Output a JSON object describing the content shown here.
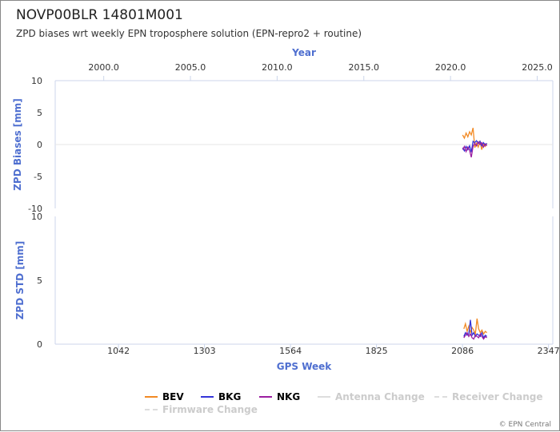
{
  "header": {
    "title": "NOVP00BLR 14801M001",
    "subtitle": "ZPD biases wrt weekly EPN troposphere solution (EPN-repro2 + routine)"
  },
  "credit": "© EPN Central",
  "colors": {
    "axis_title": "#4f6fd0",
    "BEV": "#f28a24",
    "BKG": "#3434d8",
    "NKG": "#9b1ea0",
    "inactive": "#cccccc"
  },
  "chart_data": [
    {
      "type": "line",
      "name": "bias-panel",
      "ylabel": "ZPD Biases [mm]",
      "ylim": [
        -10,
        10
      ],
      "yticks": [
        "10",
        "5",
        "0",
        "-5",
        "-10"
      ],
      "top_axis": {
        "label": "Year",
        "range": [
          1997.2,
          2025.9
        ],
        "ticks": [
          "2000.0",
          "2005.0",
          "2010.0",
          "2015.0",
          "2020.0",
          "2025.0"
        ]
      },
      "series": [
        {
          "name": "BEV",
          "x": [
            2020.7,
            2020.8,
            2020.9,
            2021.0,
            2021.1,
            2021.2,
            2021.3,
            2021.4,
            2021.5,
            2021.6,
            2021.7,
            2021.8,
            2021.9,
            2022.0,
            2022.1
          ],
          "y": [
            1.5,
            1.0,
            1.8,
            1.2,
            2.0,
            1.5,
            2.6,
            -0.5,
            0.2,
            -0.4,
            0.6,
            -0.8,
            0.1,
            -0.3,
            0.2
          ]
        },
        {
          "name": "BKG",
          "x": [
            2020.7,
            2020.8,
            2020.9,
            2021.0,
            2021.1,
            2021.2,
            2021.3,
            2021.4,
            2021.5,
            2021.6,
            2021.7,
            2021.8,
            2021.9,
            2022.0,
            2022.1
          ],
          "y": [
            -0.5,
            -1.0,
            -0.3,
            -0.8,
            -0.2,
            -1.2,
            0.5,
            0.3,
            0.6,
            0.2,
            0.5,
            -0.2,
            0.3,
            -0.1,
            0.2
          ]
        },
        {
          "name": "NKG",
          "x": [
            2020.7,
            2020.8,
            2020.9,
            2021.0,
            2021.1,
            2021.2,
            2021.3,
            2021.4,
            2021.5,
            2021.6,
            2021.7,
            2021.8,
            2021.9,
            2022.0,
            2022.1
          ],
          "y": [
            -0.8,
            -0.3,
            -1.1,
            -0.4,
            -0.9,
            -2.0,
            -0.3,
            0.2,
            -0.2,
            0.4,
            0.0,
            0.3,
            -0.4,
            0.1,
            -0.2
          ]
        }
      ]
    },
    {
      "type": "line",
      "name": "std-panel",
      "ylabel": "ZPD STD [mm]",
      "xlabel": "GPS Week",
      "ylim": [
        0,
        10
      ],
      "yticks": [
        "10",
        "5",
        "0"
      ],
      "xrange": [
        850,
        2360
      ],
      "xticks": [
        "1042",
        "1303",
        "1564",
        "1825",
        "2086",
        "2347"
      ],
      "series": [
        {
          "name": "BEV",
          "x": [
            2090,
            2095,
            2100,
            2105,
            2110,
            2115,
            2120,
            2125,
            2130,
            2135,
            2140,
            2145,
            2150,
            2155,
            2160
          ],
          "y": [
            1.2,
            1.6,
            1.0,
            1.4,
            0.9,
            1.3,
            1.1,
            0.8,
            2.0,
            1.2,
            0.9,
            1.1,
            0.8,
            1.0,
            0.9
          ]
        },
        {
          "name": "BKG",
          "x": [
            2090,
            2095,
            2100,
            2105,
            2110,
            2115,
            2120,
            2125,
            2130,
            2135,
            2140,
            2145,
            2150,
            2155,
            2160
          ],
          "y": [
            0.6,
            0.9,
            0.7,
            0.8,
            1.9,
            0.7,
            0.9,
            0.6,
            0.8,
            0.7,
            0.6,
            0.9,
            0.5,
            0.7,
            0.6
          ]
        },
        {
          "name": "NKG",
          "x": [
            2090,
            2095,
            2100,
            2105,
            2110,
            2115,
            2120,
            2125,
            2130,
            2135,
            2140,
            2145,
            2150,
            2155,
            2160
          ],
          "y": [
            0.5,
            0.7,
            0.9,
            0.6,
            0.8,
            0.5,
            0.4,
            0.7,
            0.6,
            0.5,
            0.8,
            0.6,
            0.4,
            0.6,
            0.5
          ]
        }
      ]
    }
  ],
  "legend": {
    "items": [
      {
        "label": "BEV",
        "color": "#f28a24",
        "active": true,
        "dashed": false
      },
      {
        "label": "BKG",
        "color": "#3434d8",
        "active": true,
        "dashed": false
      },
      {
        "label": "NKG",
        "color": "#9b1ea0",
        "active": true,
        "dashed": false
      },
      {
        "label": "Antenna Change",
        "color": "#dddddd",
        "active": false,
        "dashed": false
      },
      {
        "label": "Receiver Change",
        "color": "#dddddd",
        "active": false,
        "dashed": true
      },
      {
        "label": "Firmware Change",
        "color": "#dddddd",
        "active": false,
        "dashed": true
      }
    ]
  }
}
